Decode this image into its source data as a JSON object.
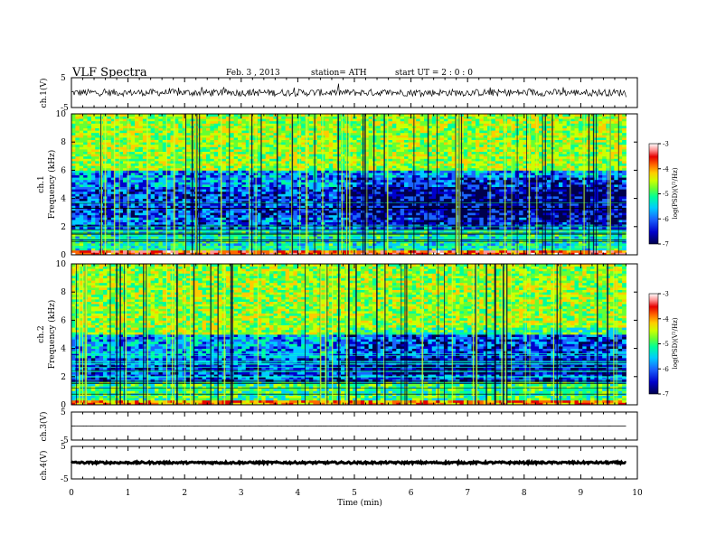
{
  "header": {
    "title": "VLF  Spectra",
    "date": "Feb. 3  , 2013",
    "station": "station= ATH",
    "start": "start  UT =   2  : 0  : 0"
  },
  "colors": {
    "spectrogram_background": "#1a8cff",
    "line_color": "#000000"
  },
  "colormap": [
    "#00004c",
    "#0000cc",
    "#1a66ff",
    "#00ccff",
    "#00ff99",
    "#66ff33",
    "#ccff00",
    "#ffcc00",
    "#ff6600",
    "#e60000",
    "#ff9999",
    "#ffffff"
  ],
  "chart_data": [
    {
      "type": "line",
      "name": "ch1-waveform",
      "ylabel": "ch.1(V)",
      "ylim": [
        -5,
        5
      ],
      "yticks": [
        "5",
        "-5"
      ],
      "xlim": [
        0,
        10
      ],
      "x_extent_min": 9.8,
      "baseline_v": 0,
      "noise_amplitude_v": 1.2
    },
    {
      "type": "heatmap",
      "name": "ch1-spectrogram",
      "ylabel": "ch.1\nFrequency  (kHz)",
      "ylim": [
        0,
        10
      ],
      "yticks": [
        "0",
        "2",
        "4",
        "6",
        "8",
        "10"
      ],
      "xlim": [
        0,
        9.8
      ],
      "colorbar": {
        "label": "log(PSD)(V²/Hz)",
        "range": [
          -7,
          -3
        ],
        "ticks": [
          "-3",
          "-4",
          "-5",
          "-6",
          "-7"
        ]
      },
      "bands_khz": [
        {
          "from": 0.0,
          "to": 0.4,
          "log_psd": -3.8,
          "label": "red band"
        },
        {
          "from": 0.4,
          "to": 1.8,
          "log_psd": -5.6,
          "label": "low band"
        },
        {
          "from": 1.8,
          "to": 2.6,
          "log_psd": -6.3
        },
        {
          "from": 2.6,
          "to": 4.8,
          "log_psd": -6.4
        },
        {
          "from": 4.8,
          "to": 6.0,
          "log_psd": -6.1
        },
        {
          "from": 6.0,
          "to": 10.0,
          "log_psd": -5.0
        }
      ],
      "transition_min": 4.8
    },
    {
      "type": "heatmap",
      "name": "ch2-spectrogram",
      "ylabel": "ch.2\nFrequency  (kHz)",
      "ylim": [
        0,
        10
      ],
      "yticks": [
        "0",
        "2",
        "4",
        "6",
        "8",
        "10"
      ],
      "xlim": [
        0,
        9.8
      ],
      "colorbar": {
        "label": "log(PSD)(V²/Hz)",
        "range": [
          -7,
          -3
        ],
        "ticks": [
          "-3",
          "-4",
          "-5",
          "-6",
          "-7"
        ]
      },
      "bands_khz": [
        {
          "from": 0.0,
          "to": 0.4,
          "log_psd": -4.2
        },
        {
          "from": 0.4,
          "to": 1.6,
          "log_psd": -5.4
        },
        {
          "from": 1.6,
          "to": 3.4,
          "log_psd": -6.4
        },
        {
          "from": 3.4,
          "to": 5.0,
          "log_psd": -6.0
        },
        {
          "from": 5.0,
          "to": 10.0,
          "log_psd": -5.0
        }
      ],
      "transition_min": 4.8
    },
    {
      "type": "line",
      "name": "ch3-waveform",
      "ylabel": "ch.3(V)",
      "ylim": [
        -5,
        5
      ],
      "yticks": [
        "5",
        "-5"
      ],
      "xlim": [
        0,
        10
      ],
      "baseline_v": 0,
      "noise_amplitude_v": 0.05
    },
    {
      "type": "line",
      "name": "ch4-waveform",
      "ylabel": "ch.4(V)",
      "ylim": [
        -5,
        5
      ],
      "yticks": [
        "5",
        "-5"
      ],
      "xlim": [
        0,
        10
      ],
      "baseline_v": 0,
      "noise_amplitude_v": 0.3
    }
  ],
  "xaxis": {
    "label": "Time  (min)",
    "ticks": [
      "0",
      "1",
      "2",
      "3",
      "4",
      "5",
      "6",
      "7",
      "8",
      "9",
      "10"
    ]
  }
}
